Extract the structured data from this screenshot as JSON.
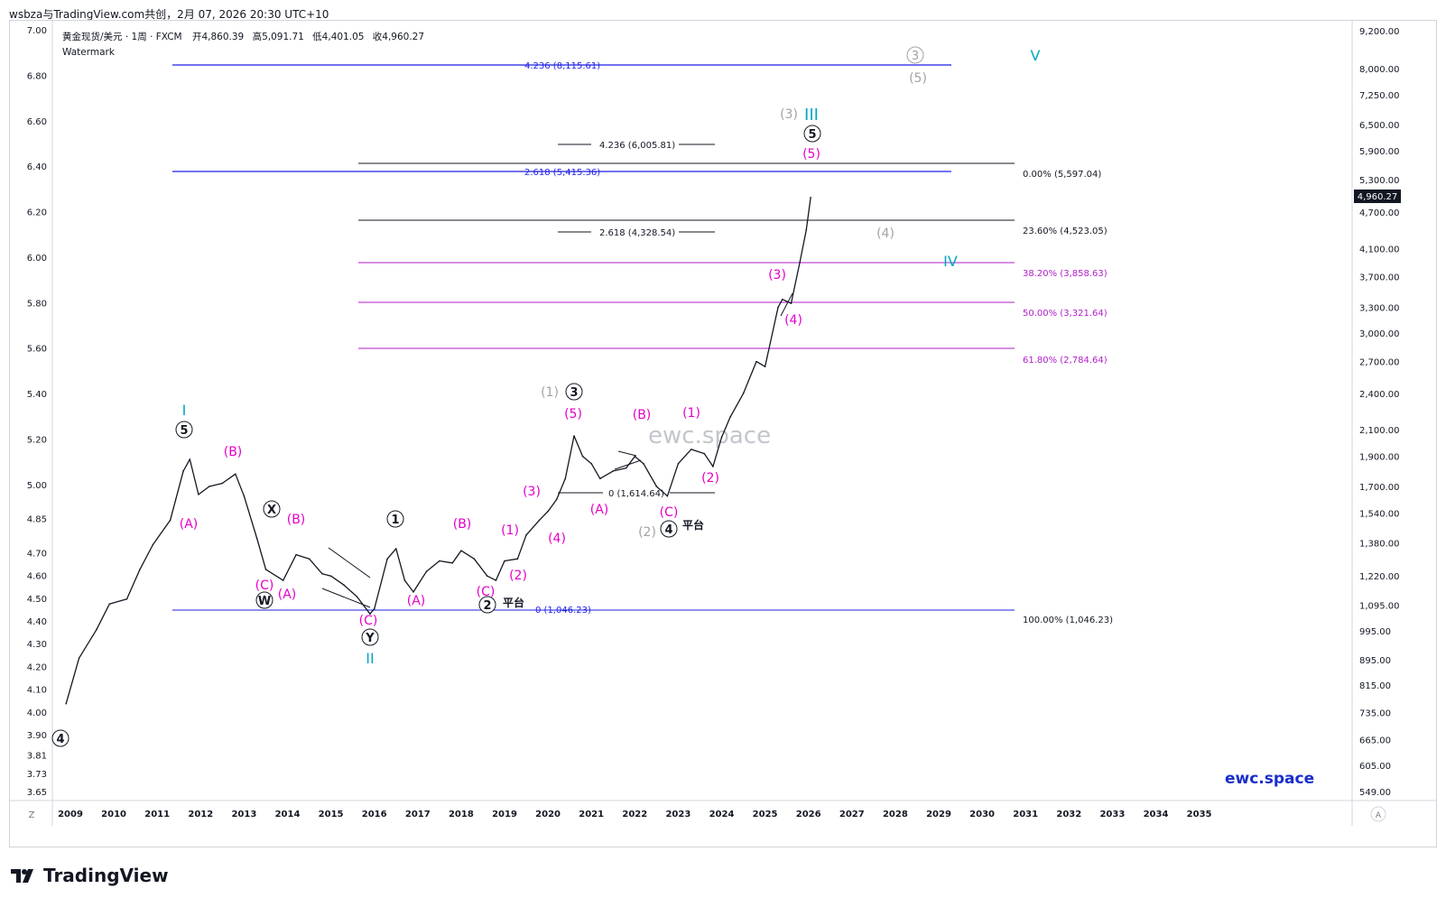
{
  "header": {
    "text": "wsbza与TradingView.com共创，2月 07, 2026 20:30 UTC+10"
  },
  "chart_info": {
    "symbol_line": "黄金现货/美元 · 1周 · FXCM",
    "open_label": "开",
    "open": "4,860.39",
    "high_label": "高",
    "high": "5,091.71",
    "low_label": "低",
    "low": "4,401.05",
    "close_label": "收",
    "close": "4,960.27",
    "watermark_label": "Watermark"
  },
  "watermark": "ewc.space",
  "brand_footer": "ewc.space",
  "branding": "TradingView",
  "axis_buttons": {
    "left": "Z",
    "right": "A"
  },
  "colors": {
    "price": "#131722",
    "magenta": "#e600c8",
    "cyan": "#00a6c8",
    "gray": "#a3a3a3",
    "blue_fib": "#1e1ee6",
    "purple_fib": "#b01ec8",
    "brand_blue": "#1a2ec8"
  },
  "chart_data": {
    "type": "line",
    "x_ticks": [
      "2009",
      "2010",
      "2011",
      "2012",
      "2013",
      "2014",
      "2015",
      "2016",
      "2017",
      "2018",
      "2019",
      "2020",
      "2021",
      "2022",
      "2023",
      "2024",
      "2025",
      "2026",
      "2027",
      "2028",
      "2029",
      "2030",
      "2031",
      "2032",
      "2033",
      "2034",
      "2035"
    ],
    "left_ticks": [
      "7.00",
      "6.80",
      "6.60",
      "6.40",
      "6.20",
      "6.00",
      "5.80",
      "5.60",
      "5.40",
      "5.20",
      "5.00",
      "4.85",
      "4.70",
      "4.60",
      "4.50",
      "4.40",
      "4.30",
      "4.20",
      "4.10",
      "4.00",
      "3.90",
      "3.81",
      "3.73",
      "3.65"
    ],
    "right_ticks": [
      "9,200.00",
      "8,000.00",
      "7,250.00",
      "6,500.00",
      "5,900.00",
      "5,300.00",
      "4,700.00",
      "4,100.00",
      "3,700.00",
      "3,300.00",
      "3,000.00",
      "2,700.00",
      "2,400.00",
      "2,100.00",
      "1,900.00",
      "1,700.00",
      "1,540.00",
      "1,380.00",
      "1,220.00",
      "1,095.00",
      "995.00",
      "895.00",
      "815.00",
      "735.00",
      "665.00",
      "605.00",
      "549.00"
    ],
    "last_price": "4,960.27",
    "y_scale": "log",
    "series": [
      {
        "x": [
          2008.9,
          2009.2,
          2009.6,
          2009.9,
          2010.3,
          2010.6,
          2010.9,
          2011.3,
          2011.6,
          2011.75,
          2011.95,
          2012.2,
          2012.5,
          2012.8,
          2013.0,
          2013.3,
          2013.5,
          2013.9,
          2014.2,
          2014.5,
          2014.8,
          2015.0,
          2015.3,
          2015.6,
          2015.9,
          2016.0,
          2016.3,
          2016.5,
          2016.7,
          2016.9,
          2017.2,
          2017.5,
          2017.8,
          2018.0,
          2018.3,
          2018.6,
          2018.8,
          2019.0,
          2019.3,
          2019.5,
          2019.8,
          2020.0,
          2020.2,
          2020.4,
          2020.6,
          2020.8,
          2021.0,
          2021.2,
          2021.5,
          2021.8,
          2022.0,
          2022.2,
          2022.5,
          2022.75,
          2023.0,
          2023.3,
          2023.6,
          2023.8,
          2024.0,
          2024.2,
          2024.5,
          2024.8,
          2025.0,
          2025.3,
          2025.4,
          2025.6,
          2025.8,
          2025.95,
          2026.05
        ],
        "y": [
          760,
          900,
          1000,
          1100,
          1120,
          1250,
          1370,
          1500,
          1800,
          1880,
          1650,
          1700,
          1720,
          1780,
          1640,
          1400,
          1250,
          1200,
          1320,
          1300,
          1230,
          1220,
          1180,
          1130,
          1060,
          1080,
          1300,
          1350,
          1200,
          1150,
          1240,
          1290,
          1280,
          1340,
          1300,
          1220,
          1200,
          1290,
          1300,
          1420,
          1500,
          1550,
          1620,
          1750,
          2050,
          1900,
          1850,
          1750,
          1800,
          1820,
          1900,
          1850,
          1700,
          1640,
          1850,
          1950,
          1920,
          1830,
          2040,
          2200,
          2400,
          2700,
          2650,
          3300,
          3400,
          3350,
          3900,
          4400,
          4960
        ]
      }
    ]
  },
  "fib_levels": [
    {
      "label": "4.236 (8,115.61)",
      "color": "#1e1ee6"
    },
    {
      "label": "4.236 (6,005.81)",
      "color": "#131722"
    },
    {
      "label": "2.618 (5,415.36)",
      "color": "#1e1ee6"
    },
    {
      "label": "0.00% (5,597.04)",
      "color": "#131722"
    },
    {
      "label": "23.60% (4,523.05)",
      "color": "#131722"
    },
    {
      "label": "2.618 (4,328.54)",
      "color": "#131722"
    },
    {
      "label": "38.20% (3,858.63)",
      "color": "#b01ec8"
    },
    {
      "label": "50.00% (3,321.64)",
      "color": "#b01ec8"
    },
    {
      "label": "61.80% (2,784.64)",
      "color": "#b01ec8"
    },
    {
      "label": "0 (1,614.64)",
      "color": "#131722"
    },
    {
      "label": "0 (1,046.23)",
      "color": "#1e1ee6"
    },
    {
      "label": "100.00% (1,046.23)",
      "color": "#131722"
    }
  ],
  "wave_labels": [
    {
      "text": "I",
      "color": "#00a6c8"
    },
    {
      "text": "II",
      "color": "#00a6c8"
    },
    {
      "text": "III",
      "color": "#00a6c8"
    },
    {
      "text": "IV",
      "color": "#00a6c8"
    },
    {
      "text": "V",
      "color": "#00a6c8"
    },
    {
      "text": "(A)",
      "color": "#e600c8"
    },
    {
      "text": "(B)",
      "color": "#e600c8"
    },
    {
      "text": "(C)",
      "color": "#e600c8"
    },
    {
      "text": "(1)",
      "color": "#e600c8"
    },
    {
      "text": "(2)",
      "color": "#e600c8"
    },
    {
      "text": "(3)",
      "color": "#e600c8"
    },
    {
      "text": "(4)",
      "color": "#e600c8"
    },
    {
      "text": "(5)",
      "color": "#e600c8"
    },
    {
      "text": "(1)",
      "color": "#a3a3a3"
    },
    {
      "text": "(2)",
      "color": "#a3a3a3"
    },
    {
      "text": "(3)",
      "color": "#a3a3a3"
    },
    {
      "text": "(4)",
      "color": "#a3a3a3"
    },
    {
      "text": "(5)",
      "color": "#a3a3a3"
    },
    {
      "text": "平台",
      "color": "#131722"
    }
  ],
  "circled_labels": [
    "1",
    "2",
    "3",
    "4",
    "5",
    "W",
    "X",
    "Y"
  ]
}
